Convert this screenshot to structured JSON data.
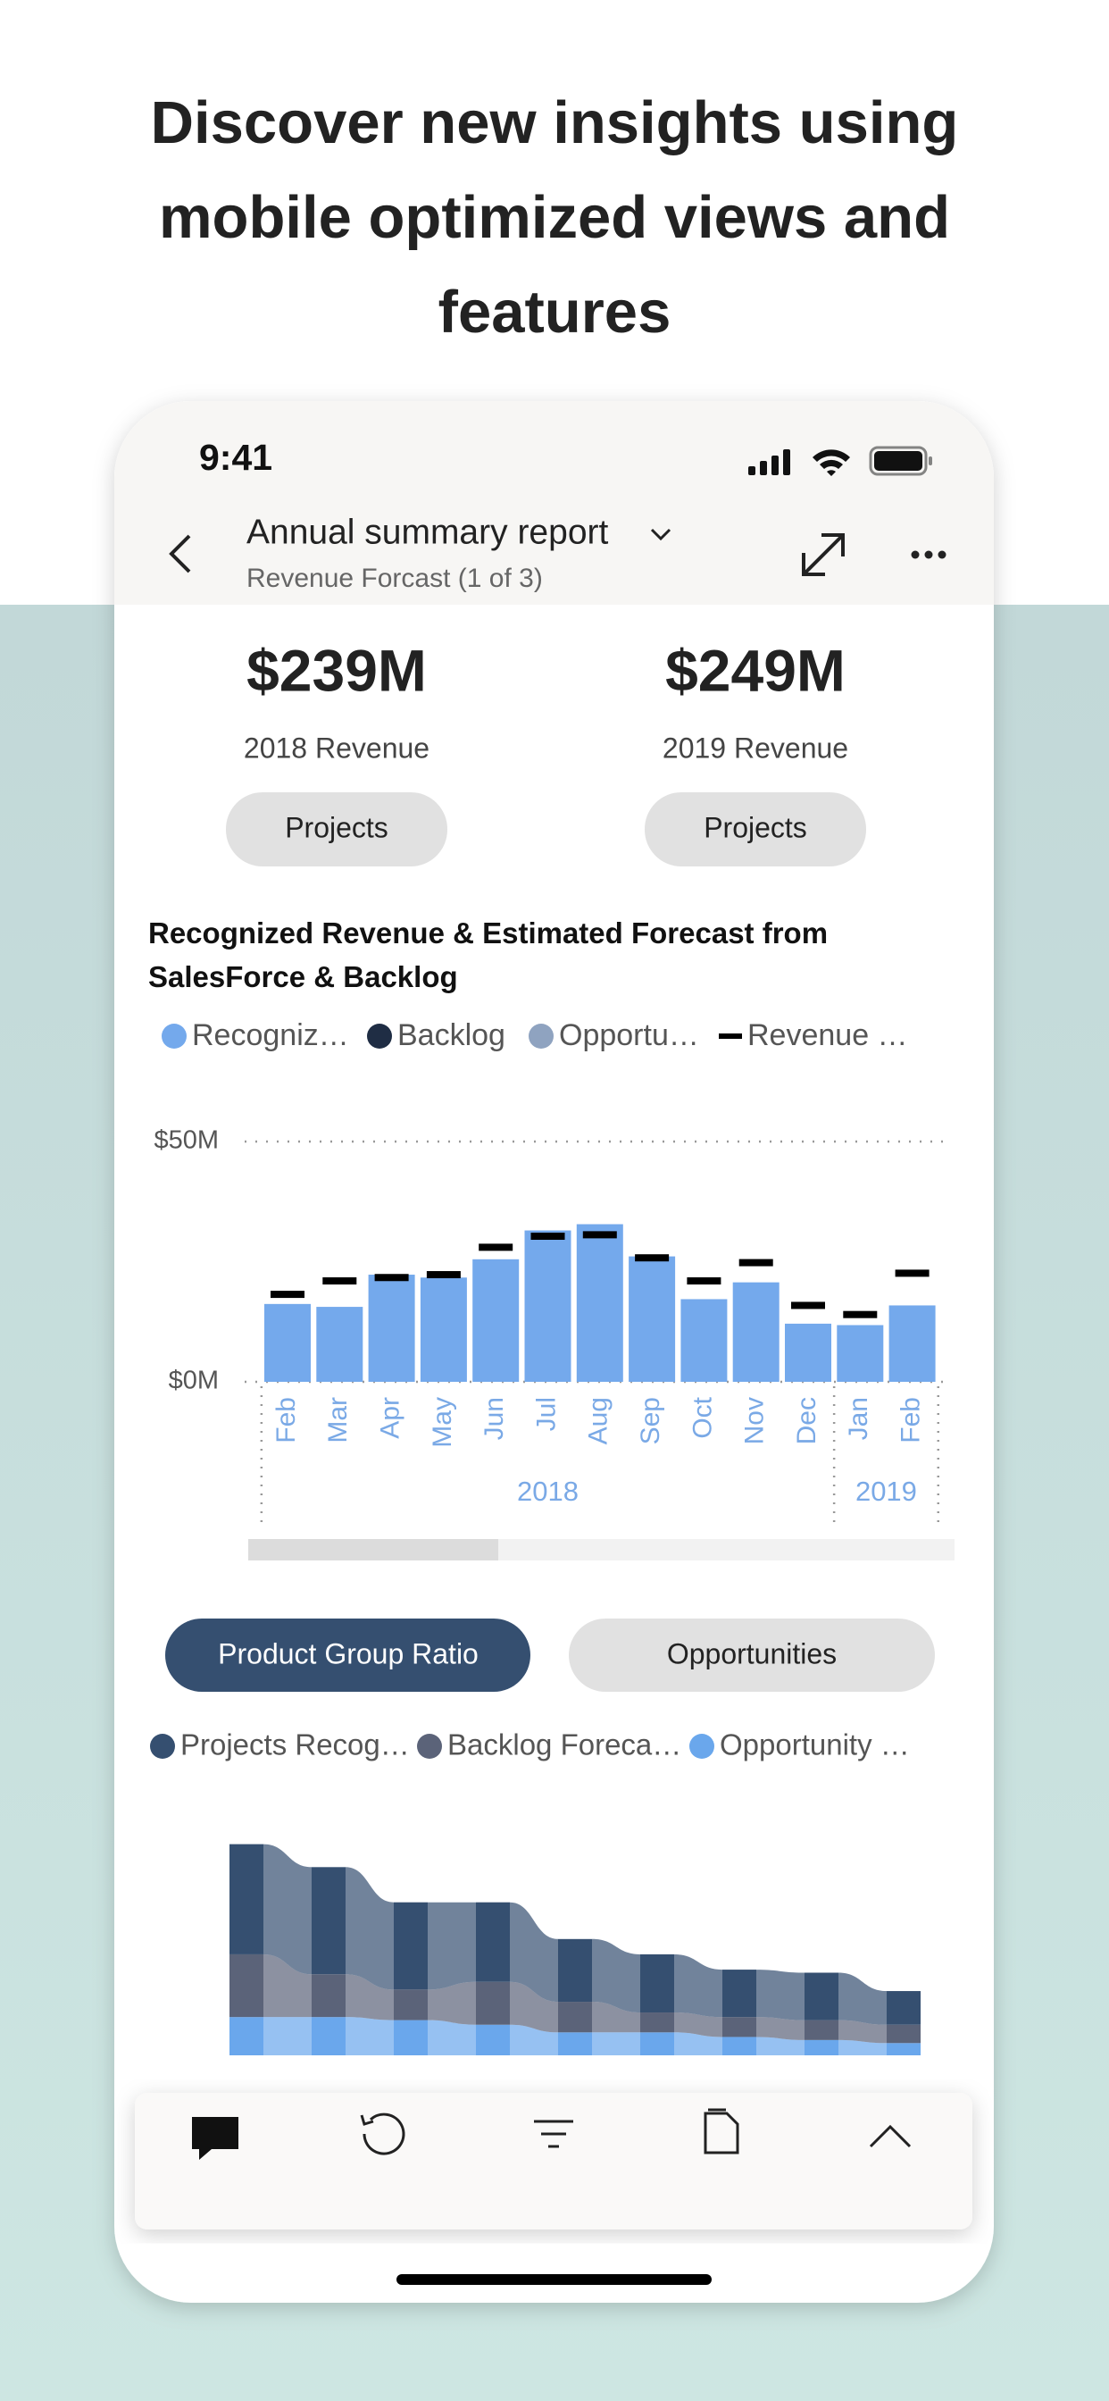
{
  "header": {
    "title": "Discover new insights using mobile optimized views and features"
  },
  "status": {
    "time": "9:41"
  },
  "nav": {
    "title": "Annual summary report",
    "subtitle": "Revenue Forcast (1 of 3)"
  },
  "kpis": [
    {
      "value": "$239M",
      "label": "2018 Revenue",
      "button": "Projects"
    },
    {
      "value": "$249M",
      "label": "2019 Revenue",
      "button": "Projects"
    }
  ],
  "tabs": {
    "active": "Product Group Ratio",
    "other": "Opportunities"
  },
  "chart_data": [
    {
      "type": "bar",
      "title": "Recognized Revenue & Estimated Forecast from SalesForce & Backlog",
      "groups": [
        {
          "label": "2018",
          "categories": [
            "Feb",
            "Mar",
            "Apr",
            "May",
            "Jun",
            "Jul",
            "Aug",
            "Sep",
            "Oct",
            "Nov",
            "Dec"
          ]
        },
        {
          "label": "2019",
          "categories": [
            "Jan",
            "Feb"
          ]
        }
      ],
      "series": [
        {
          "name": "Recogniz…",
          "color": "#74a9ec",
          "values": [
            16.2,
            15.6,
            22.3,
            21.7,
            25.5,
            31.5,
            32.8,
            26.1,
            17.2,
            20.7,
            12.1,
            11.8,
            15.9
          ]
        },
        {
          "name": "Backlog",
          "color": "#1f2d44",
          "values": [
            null,
            null,
            null,
            null,
            null,
            null,
            null,
            null,
            null,
            null,
            null,
            null,
            null
          ]
        },
        {
          "name": "Opportu…",
          "color": "#8fa3c0",
          "values": [
            null,
            null,
            null,
            null,
            null,
            null,
            null,
            null,
            null,
            null,
            null,
            null,
            null
          ]
        },
        {
          "name": "Revenue …",
          "color": "#000000",
          "style": "target",
          "values": [
            18.2,
            21.0,
            21.7,
            22.3,
            28.0,
            30.3,
            30.6,
            25.8,
            21.0,
            24.8,
            15.9,
            14.0,
            22.6
          ]
        }
      ],
      "ylim": [
        0,
        50
      ],
      "yticks": [
        {
          "value": 0,
          "label": "$0M"
        },
        {
          "value": 50,
          "label": "$50M"
        }
      ],
      "grid": true
    },
    {
      "type": "ribbon",
      "series": [
        {
          "name": "Projects Recog…",
          "color": "#354f70",
          "values": [
            72,
            70,
            57,
            52,
            41,
            38,
            31,
            31,
            22
          ]
        },
        {
          "name": "Backlog Foreca…",
          "color": "#5b6379",
          "values": [
            41,
            28,
            20,
            28,
            20,
            13,
            13,
            13,
            12
          ]
        },
        {
          "name": "Opportunity …",
          "color": "#6aa7ec",
          "values": [
            25,
            25,
            23,
            20,
            15,
            15,
            12,
            10,
            8
          ]
        }
      ]
    }
  ]
}
